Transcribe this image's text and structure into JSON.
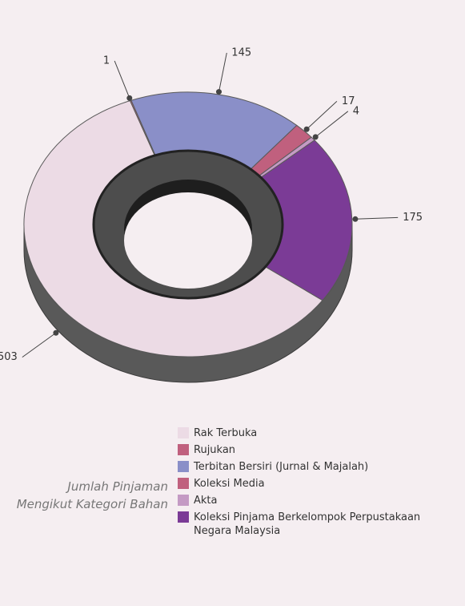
{
  "chart_data": {
    "type": "pie",
    "title": "Jumlah Pinjaman Mengikut Kategori Bahan",
    "categories": [
      "Rak Terbuka",
      "Rujukan",
      "Terbitan Bersiri (Jurnal & Majalah)",
      "Koleksi Media",
      "Akta",
      "Koleksi Pinjama Berkelompok Perpustakaan Negara Malaysia"
    ],
    "values": [
      503,
      1,
      145,
      17,
      4,
      175
    ],
    "colors": [
      "#ecdbe5",
      "#c0607e",
      "#8a8fc8",
      "#c0607e",
      "#c49ac4",
      "#7b3b96"
    ]
  }
}
